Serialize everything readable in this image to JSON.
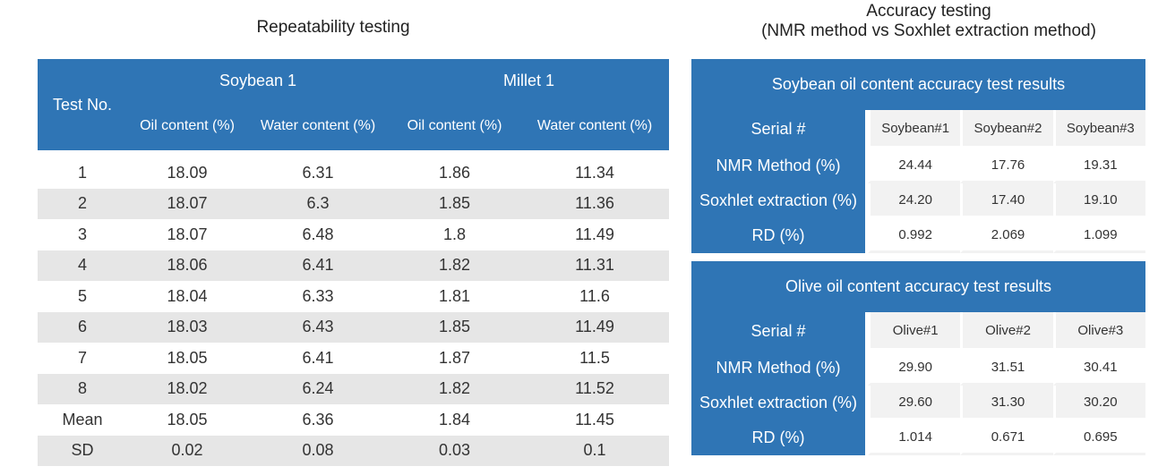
{
  "repeatability": {
    "title": "Repeatability testing",
    "test_no_label": "Test No.",
    "groups": [
      "Soybean 1",
      "Millet 1"
    ],
    "subheaders": [
      "Oil content (%)",
      "Water content (%)",
      "Oil content (%)",
      "Water content (%)"
    ],
    "rows": [
      [
        "1",
        "18.09",
        "6.31",
        "1.86",
        "11.34"
      ],
      [
        "2",
        "18.07",
        "6.3",
        "1.85",
        "11.36"
      ],
      [
        "3",
        "18.07",
        "6.48",
        "1.8",
        "11.49"
      ],
      [
        "4",
        "18.06",
        "6.41",
        "1.82",
        "11.31"
      ],
      [
        "5",
        "18.04",
        "6.33",
        "1.81",
        "11.6"
      ],
      [
        "6",
        "18.03",
        "6.43",
        "1.85",
        "11.49"
      ],
      [
        "7",
        "18.05",
        "6.41",
        "1.87",
        "11.5"
      ],
      [
        "8",
        "18.02",
        "6.24",
        "1.82",
        "11.52"
      ],
      [
        "Mean",
        "18.05",
        "6.36",
        "1.84",
        "11.45"
      ],
      [
        "SD",
        "0.02",
        "0.08",
        "0.03",
        "0.1"
      ]
    ]
  },
  "accuracy": {
    "title_line1": "Accuracy testing",
    "title_line2": "(NMR method vs Soxhlet extraction method)",
    "soybean": {
      "header": "Soybean oil content accuracy test results",
      "serial_label": "Serial #",
      "samples": [
        "Soybean#1",
        "Soybean#2",
        "Soybean#3"
      ],
      "rows": [
        {
          "label": "NMR Method (%)",
          "values": [
            "24.44",
            "17.76",
            "19.31"
          ]
        },
        {
          "label": "Soxhlet extraction (%)",
          "values": [
            "24.20",
            "17.40",
            "19.10"
          ]
        },
        {
          "label": "RD (%)",
          "values": [
            "0.992",
            "2.069",
            "1.099"
          ]
        }
      ]
    },
    "olive": {
      "header": "Olive oil content accuracy test results",
      "serial_label": "Serial #",
      "samples": [
        "Olive#1",
        "Olive#2",
        "Olive#3"
      ],
      "rows": [
        {
          "label": "NMR Method (%)",
          "values": [
            "29.90",
            "31.51",
            "30.41"
          ]
        },
        {
          "label": "Soxhlet extraction (%)",
          "values": [
            "29.60",
            "31.30",
            "30.20"
          ]
        },
        {
          "label": "RD (%)",
          "values": [
            "1.014",
            "0.671",
            "0.695"
          ]
        }
      ]
    }
  },
  "colors": {
    "header_blue": "#2f75b5",
    "stripe_gray": "#e6e6e6"
  }
}
